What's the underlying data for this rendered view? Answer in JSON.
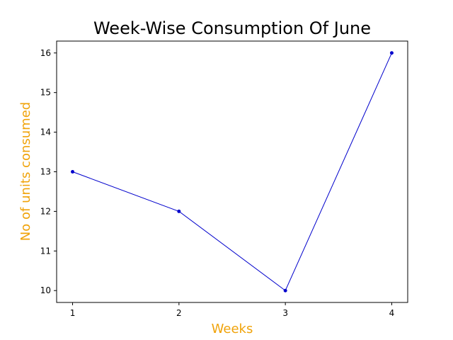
{
  "chart_data": {
    "type": "line",
    "title": "Week-Wise Consumption Of June",
    "xlabel": "Weeks",
    "ylabel": "No of units consumed",
    "x": [
      1,
      2,
      3,
      4
    ],
    "series": [
      {
        "values": [
          13,
          12,
          10,
          16
        ],
        "color": "#0000cc",
        "marker": "circle"
      }
    ],
    "xticks": [
      1,
      2,
      3,
      4
    ],
    "yticks": [
      10,
      11,
      12,
      13,
      14,
      15,
      16
    ],
    "xlim": [
      0.85,
      4.15
    ],
    "ylim": [
      9.7,
      16.3
    ],
    "label_color": "#f0a30a",
    "grid": false,
    "legend": "none"
  }
}
